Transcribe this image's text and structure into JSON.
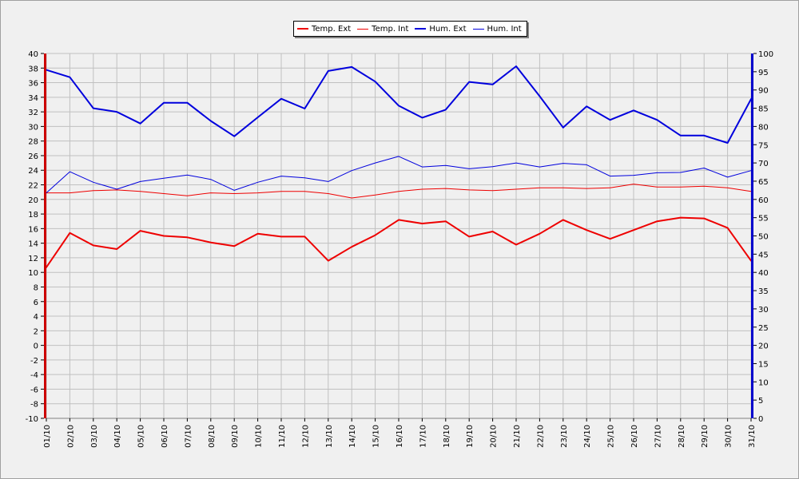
{
  "chart_data": {
    "type": "line",
    "title": "",
    "x": [
      "01/10",
      "02/10",
      "03/10",
      "04/10",
      "05/10",
      "06/10",
      "07/10",
      "08/10",
      "09/10",
      "10/10",
      "11/10",
      "12/10",
      "13/10",
      "14/10",
      "15/10",
      "16/10",
      "17/10",
      "18/10",
      "19/10",
      "20/10",
      "21/10",
      "22/10",
      "23/10",
      "24/10",
      "25/10",
      "26/10",
      "27/10",
      "28/10",
      "29/10",
      "30/10",
      "31/10"
    ],
    "left_axis": {
      "ylim": [
        -10,
        40
      ],
      "step": 2,
      "color": "#cc0000"
    },
    "right_axis": {
      "ylim": [
        0,
        100
      ],
      "step": 5,
      "color": "#0000cc"
    },
    "grid": true,
    "legend_position": "top-center",
    "series": [
      {
        "name": "Temp. Ext",
        "axis": "left",
        "color": "#ee0000",
        "width": 2,
        "values": [
          10.7,
          15.4,
          13.7,
          13.2,
          15.7,
          15.0,
          14.8,
          14.1,
          13.6,
          15.3,
          14.9,
          14.9,
          11.6,
          13.5,
          15.1,
          17.2,
          16.7,
          17.0,
          14.9,
          15.6,
          13.8,
          15.3,
          17.2,
          15.8,
          14.6,
          15.8,
          17.0,
          17.5,
          17.4,
          16.1,
          11.6
        ]
      },
      {
        "name": "Temp. Int",
        "axis": "left",
        "color": "#ee0000",
        "width": 1,
        "values": [
          20.9,
          20.9,
          21.2,
          21.3,
          21.1,
          20.8,
          20.5,
          20.9,
          20.8,
          20.9,
          21.1,
          21.1,
          20.8,
          20.2,
          20.6,
          21.1,
          21.4,
          21.5,
          21.3,
          21.2,
          21.4,
          21.6,
          21.6,
          21.5,
          21.6,
          22.1,
          21.7,
          21.7,
          21.8,
          21.6,
          21.1
        ]
      },
      {
        "name": "Hum. Ext",
        "axis": "right",
        "color": "#0000dd",
        "width": 2,
        "values": [
          95.5,
          93.5,
          85.0,
          84.0,
          80.8,
          86.5,
          86.5,
          81.5,
          77.3,
          82.5,
          87.6,
          84.9,
          95.2,
          96.3,
          92.3,
          85.7,
          82.4,
          84.6,
          92.2,
          91.5,
          96.5,
          88.3,
          79.7,
          85.5,
          81.8,
          84.4,
          81.8,
          77.5,
          77.5,
          75.5,
          87.5
        ]
      },
      {
        "name": "Hum. Int",
        "axis": "right",
        "color": "#0000dd",
        "width": 1,
        "values": [
          61.8,
          67.6,
          64.7,
          62.8,
          64.9,
          65.8,
          66.7,
          65.5,
          62.5,
          64.7,
          66.4,
          65.9,
          64.9,
          67.9,
          70.0,
          71.8,
          68.9,
          69.3,
          68.4,
          69.0,
          70.0,
          68.9,
          69.9,
          69.5,
          66.4,
          66.6,
          67.3,
          67.4,
          68.6,
          66.1,
          67.9
        ]
      }
    ]
  }
}
